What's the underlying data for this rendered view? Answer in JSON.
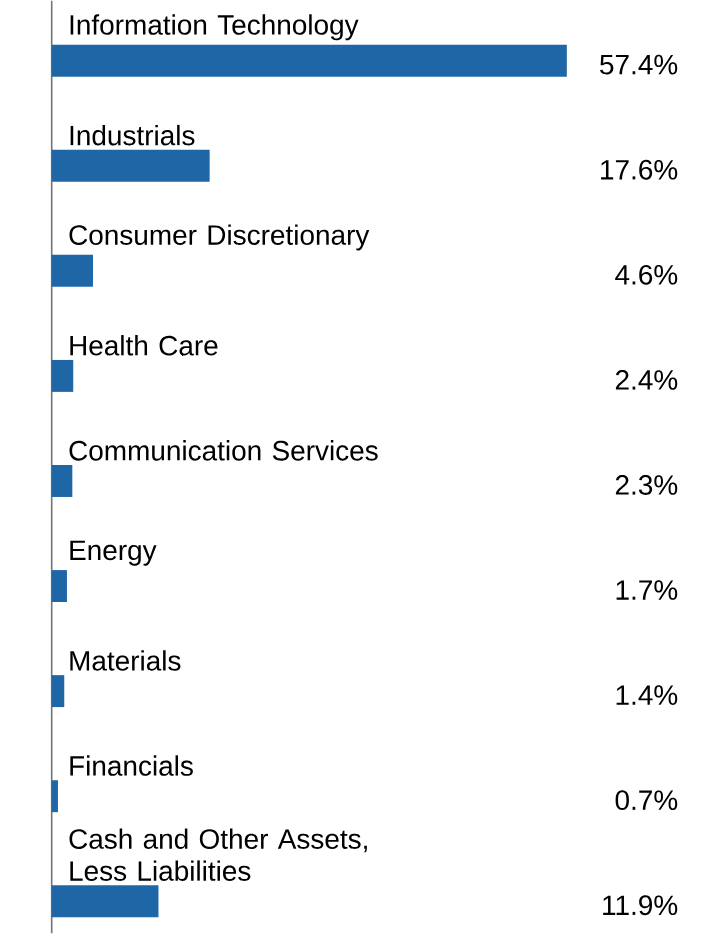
{
  "chart_data": {
    "type": "bar",
    "orientation": "horizontal",
    "categories": [
      "Information Technology",
      "Industrials",
      "Consumer Discretionary",
      "Health Care",
      "Communication Services",
      "Energy",
      "Materials",
      "Financials",
      "Cash and Other Assets, Less Liabilities"
    ],
    "values": [
      57.4,
      17.6,
      4.6,
      2.4,
      2.3,
      1.7,
      1.4,
      0.7,
      11.9
    ],
    "value_labels": [
      "57.4%",
      "17.6%",
      "4.6%",
      "2.4%",
      "2.3%",
      "1.7%",
      "1.4%",
      "0.7%",
      "11.9%"
    ],
    "color": "#1f66a6"
  }
}
